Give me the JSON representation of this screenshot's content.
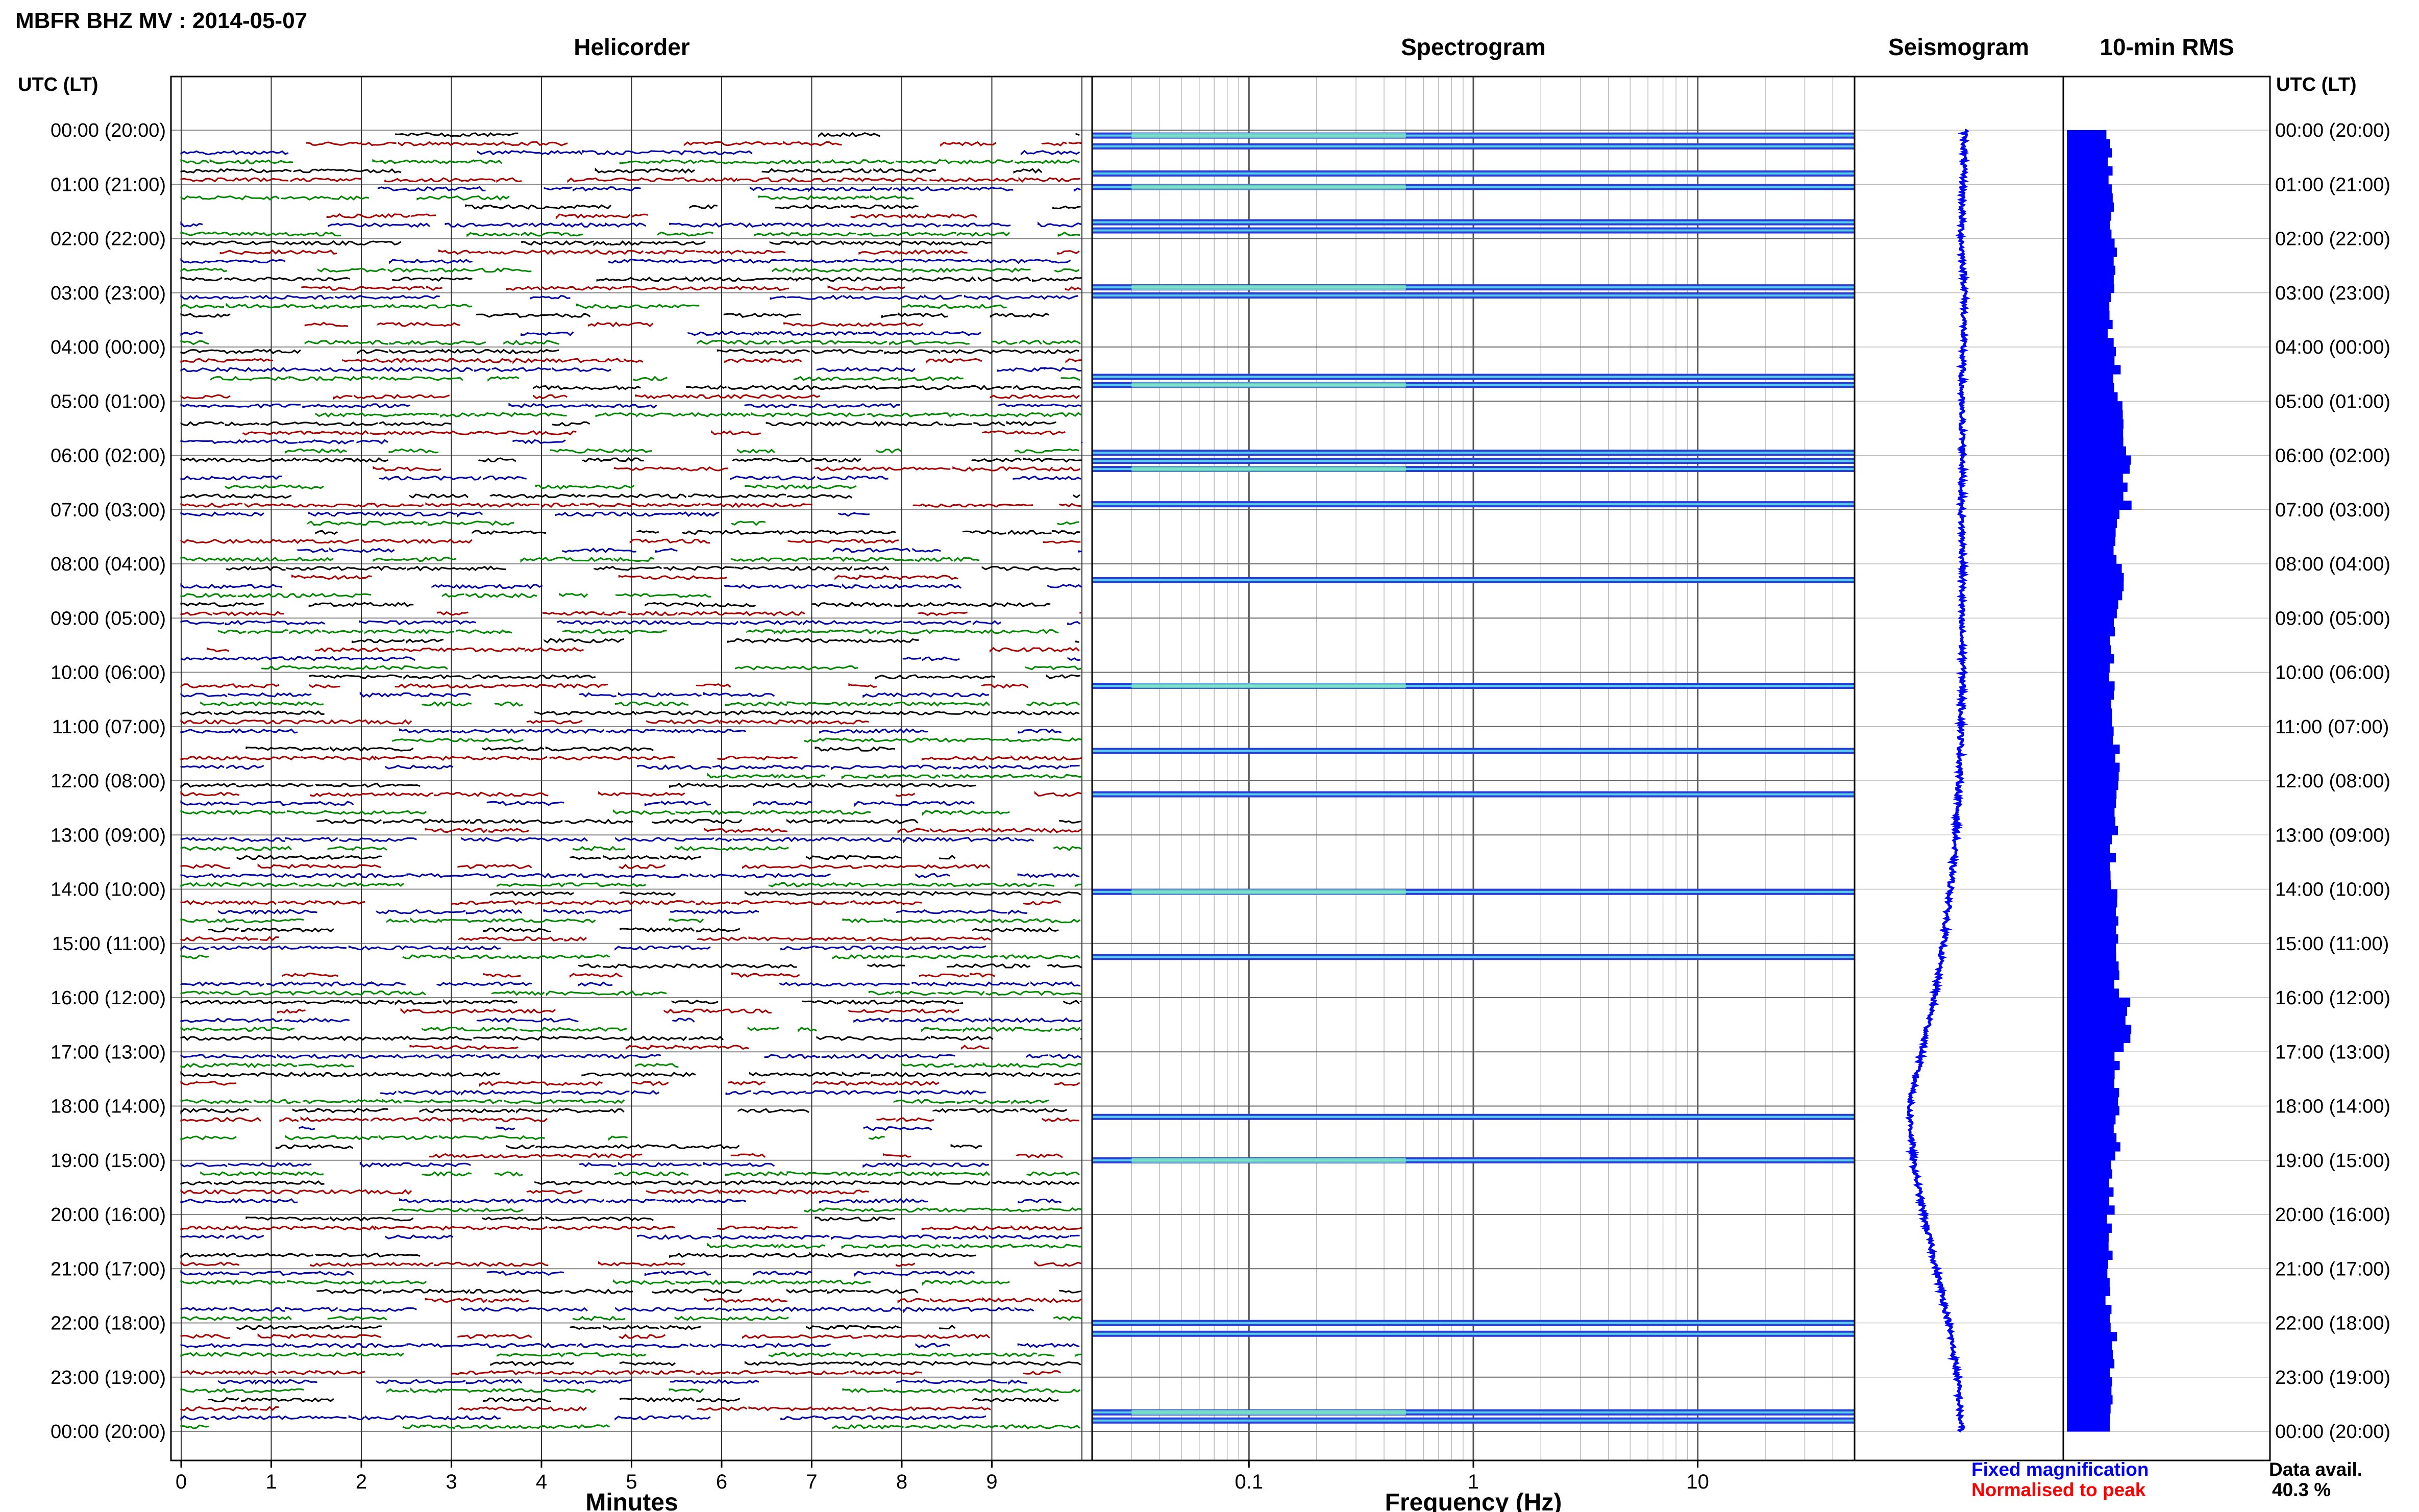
{
  "page_title": "MBFR BHZ MV : 2014-05-07",
  "panels": {
    "helicorder": "Helicorder",
    "spectrogram": "Spectrogram",
    "seismogram": "Seismogram",
    "rms": "10-min RMS"
  },
  "left_axis_label": "UTC (LT)",
  "right_axis_label": "UTC (LT)",
  "time_labels": [
    "00:00 (20:00)",
    "01:00 (21:00)",
    "02:00 (22:00)",
    "03:00 (23:00)",
    "04:00 (00:00)",
    "05:00 (01:00)",
    "06:00 (02:00)",
    "07:00 (03:00)",
    "08:00 (04:00)",
    "09:00 (05:00)",
    "10:00 (06:00)",
    "11:00 (07:00)",
    "12:00 (08:00)",
    "13:00 (09:00)",
    "14:00 (10:00)",
    "15:00 (11:00)",
    "16:00 (12:00)",
    "17:00 (13:00)",
    "18:00 (14:00)",
    "19:00 (15:00)",
    "20:00 (16:00)",
    "21:00 (17:00)",
    "22:00 (18:00)",
    "23:00 (19:00)",
    "00:00 (20:00)"
  ],
  "helicorder_xlabel": "Minutes",
  "helicorder_ticks": [
    "0",
    "1",
    "2",
    "3",
    "4",
    "5",
    "6",
    "7",
    "8",
    "9"
  ],
  "spectrogram_xlabel": "Frequency (Hz)",
  "spectrogram_ticks": [
    "0.1",
    "1",
    "10"
  ],
  "legend": {
    "fixed": "Fixed magnification",
    "normalised": "Normalised to peak"
  },
  "data_avail": {
    "label": "Data avail.",
    "value": "40.3 %"
  },
  "colors": {
    "fixed": "#0000ff",
    "normalised": "#ff0000",
    "trace_colors": [
      "#000000",
      "#aa0000",
      "#0000aa",
      "#008800"
    ],
    "grid": "#9a9a9a",
    "frame": "#000000"
  },
  "chart_data": [
    {
      "type": "line",
      "title": "Helicorder",
      "xlabel": "Minutes",
      "xlim": [
        0,
        10
      ],
      "ylabel": "UTC (LT)",
      "ylim": [
        "00:00",
        "24:00"
      ],
      "lines_per_hour": 6,
      "grid": true
    },
    {
      "type": "heatmap",
      "title": "Spectrogram",
      "xlabel": "Frequency (Hz)",
      "x_scale": "log",
      "xlim": [
        0.02,
        50
      ],
      "ylim": [
        "00:00",
        "24:00"
      ],
      "active_hours_utc": [
        0.1,
        0.3,
        0.8,
        1.05,
        1.7,
        1.85,
        2.9,
        3.05,
        4.55,
        4.7,
        5.95,
        6.1,
        6.25,
        6.9,
        8.3,
        10.25,
        11.45,
        12.25,
        14.05,
        15.25,
        18.2,
        19.0,
        22.0,
        22.2,
        23.65,
        23.8
      ]
    },
    {
      "type": "scatter",
      "title": "Seismogram",
      "ylim": [
        "00:00",
        "24:00"
      ],
      "offset_track": [
        [
          0.0,
          0.0
        ],
        [
          1.0,
          0.05
        ],
        [
          2.0,
          0.1
        ],
        [
          3.0,
          0.0
        ],
        [
          4.0,
          0.05
        ],
        [
          5.0,
          0.1
        ],
        [
          6.0,
          0.05
        ],
        [
          7.0,
          0.1
        ],
        [
          8.0,
          0.05
        ],
        [
          9.0,
          0.1
        ],
        [
          10.0,
          0.05
        ],
        [
          11.0,
          0.1
        ],
        [
          12.0,
          0.15
        ],
        [
          13.0,
          0.25
        ],
        [
          14.0,
          0.4
        ],
        [
          15.0,
          0.6
        ],
        [
          16.0,
          0.85
        ],
        [
          17.0,
          1.2
        ],
        [
          18.0,
          1.55
        ],
        [
          19.0,
          1.45
        ],
        [
          20.0,
          1.15
        ],
        [
          21.0,
          0.8
        ],
        [
          22.0,
          0.45
        ],
        [
          23.0,
          0.2
        ],
        [
          24.0,
          0.1
        ]
      ]
    },
    {
      "type": "bar",
      "title": "10-min RMS",
      "orientation": "horizontal",
      "bin_minutes": 10,
      "ylim": [
        "00:00",
        "24:00"
      ],
      "xlim": [
        0,
        1
      ],
      "color": "#0000ff",
      "hourly_rms": [
        0.6,
        0.62,
        0.65,
        0.62,
        0.7,
        0.78,
        0.85,
        0.7,
        0.75,
        0.65,
        0.62,
        0.7,
        0.72,
        0.65,
        0.68,
        0.7,
        0.85,
        0.72,
        0.7,
        0.62,
        0.6,
        0.58,
        0.65,
        0.6
      ]
    }
  ]
}
